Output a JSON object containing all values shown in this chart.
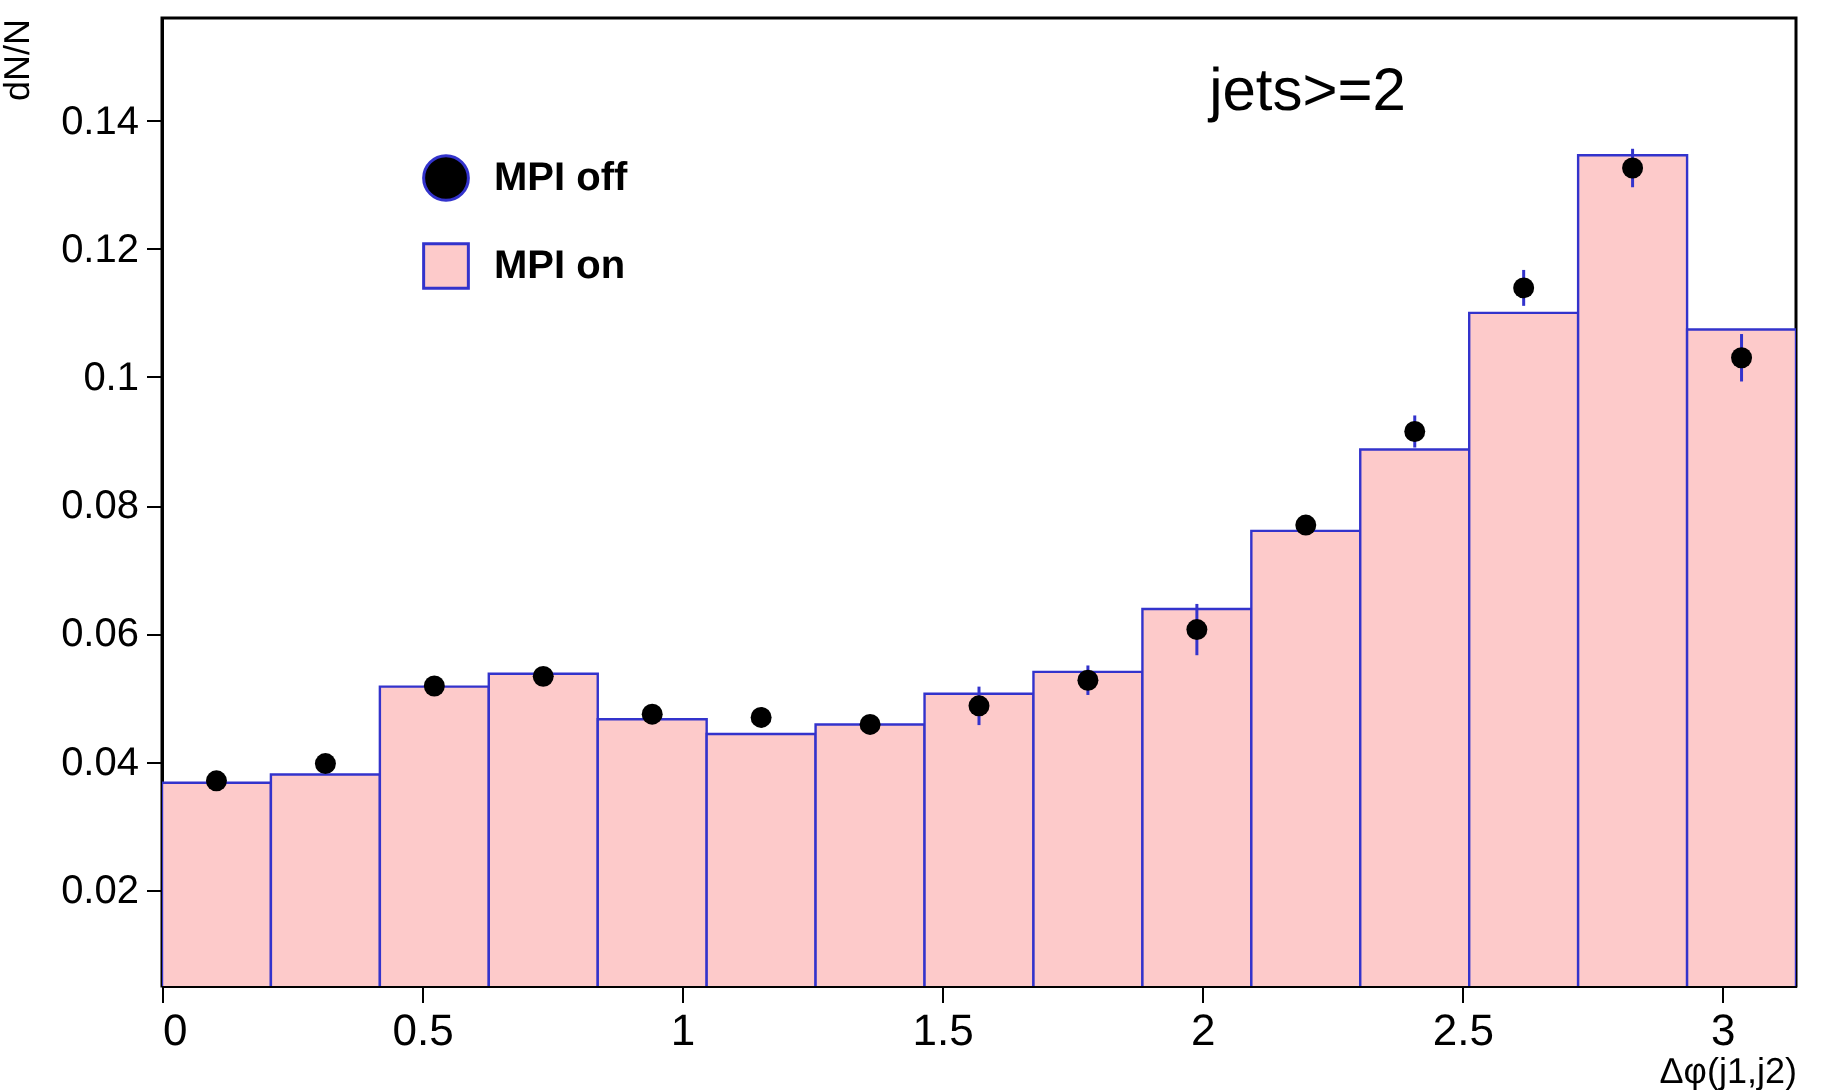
{
  "chart_data": {
    "type": "histogram",
    "title": "jets>=2",
    "xlabel": "Δφ(j1,j2)",
    "ylabel": "dN/N",
    "bins": [
      0,
      0.2094,
      0.4189,
      0.6283,
      0.8378,
      1.0472,
      1.2566,
      1.4661,
      1.6755,
      1.885,
      2.0944,
      2.3038,
      2.5133,
      2.7227,
      2.9322,
      3.1416
    ],
    "xlim": [
      0,
      3.1416
    ],
    "xticks": [
      0,
      0.5,
      1,
      1.5,
      2,
      2.5,
      3
    ],
    "ylim": [
      0.005,
      0.156
    ],
    "yticks": [
      0.02,
      0.04,
      0.06,
      0.08,
      0.1,
      0.12,
      0.14
    ],
    "legend": "top left",
    "series": [
      {
        "type": "scatter",
        "name": "MPI off",
        "color": "#000000",
        "x": [
          0.1047,
          0.3142,
          0.5236,
          0.733,
          0.9425,
          1.1519,
          1.3614,
          1.5708,
          1.7802,
          1.9897,
          2.1991,
          2.4086,
          2.618,
          2.8274,
          3.0369
        ],
        "values": [
          0.037,
          0.0397,
          0.0518,
          0.0533,
          0.0474,
          0.0469,
          0.0458,
          0.0487,
          0.0527,
          0.0606,
          0.0769,
          0.0915,
          0.1139,
          0.1326,
          0.103
        ],
        "errors": [
          null,
          null,
          null,
          null,
          null,
          null,
          null,
          0.003,
          0.0023,
          0.004,
          null,
          0.0025,
          0.0028,
          0.003,
          0.0037
        ]
      },
      {
        "type": "histogram",
        "name": "MPI on",
        "color": "#fdcaca",
        "values": [
          0.0367,
          0.038,
          0.0517,
          0.0537,
          0.0466,
          0.0443,
          0.0458,
          0.0506,
          0.054,
          0.0638,
          0.076,
          0.0887,
          0.11,
          0.1346,
          0.1074
        ]
      }
    ]
  }
}
